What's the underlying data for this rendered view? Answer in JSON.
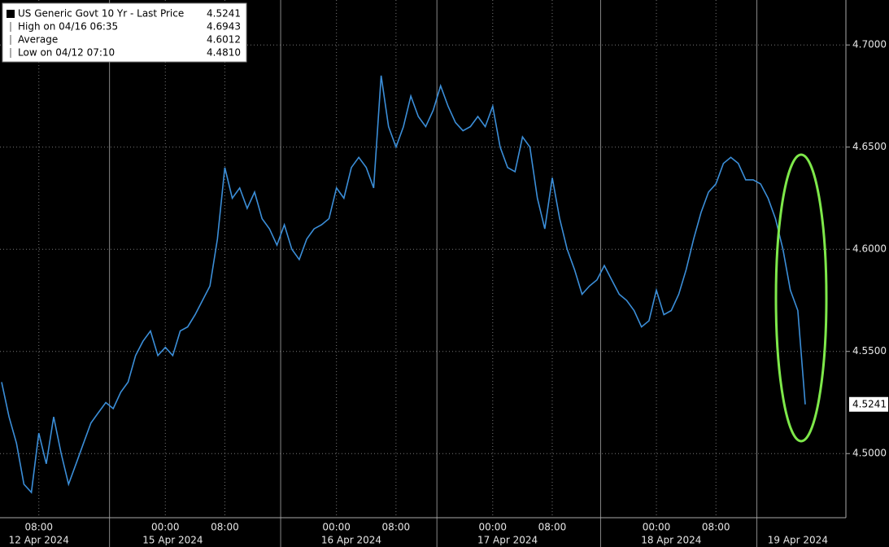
{
  "chart_data": {
    "type": "line",
    "stats": [
      {
        "label": "US Generic Govt 10 Yr - Last Price",
        "value": 4.5241
      },
      {
        "label": "High on 04/16 06:35",
        "value": 4.6943
      },
      {
        "label": "Average",
        "value": 4.6012
      },
      {
        "label": "Low on 04/12 07:10",
        "value": 4.481,
        "value_label": "4.4810"
      }
    ],
    "x": [
      "04/12 03:00",
      "04/12 04:00",
      "04/12 05:00",
      "04/12 06:00",
      "04/12 07:00",
      "04/12 08:00",
      "04/12 09:00",
      "04/12 10:00",
      "04/12 11:00",
      "04/12 12:00",
      "04/12 13:00",
      "04/12 14:00",
      "04/12 15:00",
      "04/12 16:00",
      "04/12 17:00",
      "04/14 17:00",
      "04/14 18:00",
      "04/14 19:00",
      "04/14 20:00",
      "04/14 21:00",
      "04/14 22:00",
      "04/14 23:00",
      "04/15 00:00",
      "04/15 01:00",
      "04/15 02:00",
      "04/15 03:00",
      "04/15 04:00",
      "04/15 05:00",
      "04/15 06:00",
      "04/15 07:00",
      "04/15 08:00",
      "04/15 09:00",
      "04/15 10:00",
      "04/15 11:00",
      "04/15 12:00",
      "04/15 13:00",
      "04/15 14:00",
      "04/15 15:00",
      "04/15 17:00",
      "04/15 18:00",
      "04/15 19:00",
      "04/15 20:00",
      "04/15 21:00",
      "04/15 22:00",
      "04/15 23:00",
      "04/16 00:00",
      "04/16 01:00",
      "04/16 02:00",
      "04/16 03:00",
      "04/16 04:00",
      "04/16 05:00",
      "04/16 06:00",
      "04/16 07:00",
      "04/16 08:00",
      "04/16 09:00",
      "04/16 10:00",
      "04/16 11:00",
      "04/16 12:00",
      "04/16 13:00",
      "04/16 17:00",
      "04/16 18:00",
      "04/16 19:00",
      "04/16 20:00",
      "04/16 21:00",
      "04/16 22:00",
      "04/16 23:00",
      "04/17 00:00",
      "04/17 01:00",
      "04/17 02:00",
      "04/17 03:00",
      "04/17 04:00",
      "04/17 05:00",
      "04/17 06:00",
      "04/17 07:00",
      "04/17 08:00",
      "04/17 09:00",
      "04/17 10:00",
      "04/17 11:00",
      "04/17 12:00",
      "04/17 13:00",
      "04/17 14:00",
      "04/17 17:00",
      "04/17 18:00",
      "04/17 19:00",
      "04/17 20:00",
      "04/17 21:00",
      "04/17 22:00",
      "04/17 23:00",
      "04/18 00:00",
      "04/18 01:00",
      "04/18 02:00",
      "04/18 03:00",
      "04/18 04:00",
      "04/18 05:00",
      "04/18 06:00",
      "04/18 07:00",
      "04/18 08:00",
      "04/18 09:00",
      "04/18 10:00",
      "04/18 11:00",
      "04/18 12:00",
      "04/18 13:00",
      "04/18 17:00",
      "04/18 18:00",
      "04/18 19:00",
      "04/18 20:00",
      "04/18 21:00",
      "04/18 22:00",
      "04/18 23:00"
    ],
    "series": [
      {
        "name": "US Generic Govt 10 Yr - Last Price",
        "color": "#3b8ed8",
        "values": [
          4.535,
          4.518,
          4.505,
          4.485,
          4.481,
          4.51,
          4.495,
          4.518,
          4.5,
          4.485,
          4.495,
          4.505,
          4.515,
          4.52,
          4.525,
          4.522,
          4.53,
          4.535,
          4.548,
          4.555,
          4.56,
          4.548,
          4.552,
          4.548,
          4.56,
          4.562,
          4.568,
          4.575,
          4.582,
          4.605,
          4.64,
          4.625,
          4.63,
          4.62,
          4.628,
          4.615,
          4.61,
          4.602,
          4.612,
          4.6,
          4.595,
          4.605,
          4.61,
          4.612,
          4.615,
          4.63,
          4.625,
          4.64,
          4.645,
          4.64,
          4.63,
          4.685,
          4.66,
          4.65,
          4.66,
          4.675,
          4.665,
          4.66,
          4.668,
          4.68,
          4.67,
          4.662,
          4.658,
          4.66,
          4.665,
          4.66,
          4.67,
          4.65,
          4.64,
          4.638,
          4.655,
          4.65,
          4.625,
          4.61,
          4.635,
          4.615,
          4.6,
          4.59,
          4.578,
          4.582,
          4.585,
          4.592,
          4.585,
          4.578,
          4.575,
          4.57,
          4.562,
          4.565,
          4.58,
          4.568,
          4.57,
          4.578,
          4.59,
          4.605,
          4.618,
          4.628,
          4.632,
          4.642,
          4.645,
          4.642,
          4.634,
          4.634,
          4.632,
          4.625,
          4.615,
          4.6,
          4.58,
          4.57,
          4.5241
        ]
      }
    ],
    "time_labels": [
      {
        "at": "04/12 08:00",
        "label": "08:00"
      },
      {
        "at": "04/15 00:00",
        "label": "00:00"
      },
      {
        "at": "04/15 08:00",
        "label": "08:00"
      },
      {
        "at": "04/16 00:00",
        "label": "00:00"
      },
      {
        "at": "04/16 08:00",
        "label": "08:00"
      },
      {
        "at": "04/17 00:00",
        "label": "00:00"
      },
      {
        "at": "04/17 08:00",
        "label": "08:00"
      },
      {
        "at": "04/18 00:00",
        "label": "00:00"
      },
      {
        "at": "04/18 08:00",
        "label": "08:00"
      }
    ],
    "date_labels": [
      {
        "at": "04/12 08:00",
        "label": "12 Apr 2024"
      },
      {
        "at": "04/15 01:00",
        "label": "15 Apr 2024"
      },
      {
        "at": "04/16 02:00",
        "label": "16 Apr 2024"
      },
      {
        "at": "04/17 02:00",
        "label": "17 Apr 2024"
      },
      {
        "at": "04/18 02:00",
        "label": "18 Apr 2024"
      },
      {
        "at": "04/18 22:00",
        "label": "19 Apr 2024"
      }
    ],
    "ylim": [
      4.475,
      4.722
    ],
    "yticks": [
      {
        "value": 4.5,
        "label": "4.5000"
      },
      {
        "value": 4.55,
        "label": "4.5500"
      },
      {
        "value": 4.6,
        "label": "4.6000"
      },
      {
        "value": 4.65,
        "label": "4.6500"
      },
      {
        "value": 4.7,
        "label": "4.7000"
      }
    ],
    "grid": true
  }
}
